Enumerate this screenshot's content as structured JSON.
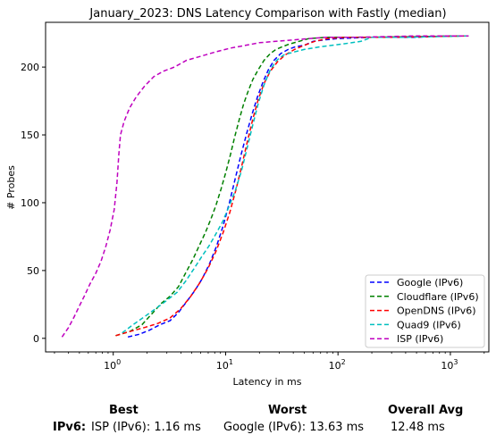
{
  "chart_data": {
    "type": "line",
    "title": "January_2023: DNS Latency Comparison with Fastly (median)",
    "xlabel": "Latency in ms",
    "ylabel": "# Probes",
    "xscale": "log",
    "xlim": [
      0.25,
      2200
    ],
    "ylim": [
      -10,
      233
    ],
    "x_ticks": [
      {
        "value": 1,
        "base": "10",
        "exp": "0"
      },
      {
        "value": 10,
        "base": "10",
        "exp": "1"
      },
      {
        "value": 100,
        "base": "10",
        "exp": "2"
      },
      {
        "value": 1000,
        "base": "10",
        "exp": "3"
      }
    ],
    "y_ticks": [
      0,
      50,
      100,
      150,
      200
    ],
    "grid": false,
    "legend_position": "lower-right",
    "series": [
      {
        "name": "Google (IPv6)",
        "color": "#0000ff",
        "x": [
          1.35,
          1.7,
          2.1,
          2.6,
          3.2,
          3.8,
          4.5,
          5.3,
          6.2,
          7.2,
          8.3,
          9.5,
          10.8,
          12.2,
          13.8,
          15.5,
          17.3,
          19.2,
          21.5,
          24,
          27,
          31,
          36,
          42,
          50,
          60,
          75,
          100,
          200,
          500,
          1000,
          1450
        ],
        "y": [
          1,
          3,
          6,
          10,
          13,
          19,
          27,
          35,
          44,
          55,
          68,
          83,
          100,
          118,
          136,
          152,
          166,
          178,
          189,
          198,
          205,
          210,
          213,
          215,
          216,
          219,
          220,
          221,
          222,
          222,
          223,
          223
        ]
      },
      {
        "name": "Cloudflare (IPv6)",
        "color": "#008000",
        "x": [
          1.05,
          1.4,
          1.8,
          2.2,
          2.7,
          3.2,
          3.8,
          4.4,
          5.1,
          5.8,
          6.6,
          7.4,
          8.2,
          9.1,
          10,
          11,
          12,
          13.2,
          14.5,
          16,
          17.5,
          19.5,
          22,
          25,
          28,
          32,
          37,
          45,
          55,
          80,
          200,
          1450
        ],
        "y": [
          2,
          5,
          10,
          18,
          26,
          31,
          38,
          48,
          58,
          68,
          78,
          88,
          98,
          110,
          122,
          135,
          148,
          161,
          173,
          183,
          191,
          198,
          205,
          210,
          213,
          215,
          217,
          219,
          221,
          222,
          222,
          223
        ]
      },
      {
        "name": "OpenDNS (IPv6)",
        "color": "#ff0000",
        "x": [
          1.05,
          1.4,
          1.9,
          2.5,
          3.2,
          4,
          4.9,
          5.9,
          7,
          8.2,
          9.5,
          10.9,
          12.4,
          14,
          15.7,
          17.5,
          19.5,
          22,
          25,
          29,
          34,
          41,
          50,
          62,
          80,
          120,
          300,
          1450
        ],
        "y": [
          2,
          5,
          8,
          11,
          15,
          22,
          31,
          41,
          52,
          64,
          78,
          93,
          110,
          128,
          146,
          162,
          176,
          188,
          197,
          204,
          209,
          213,
          216,
          219,
          221,
          222,
          222,
          223
        ]
      },
      {
        "name": "Quad9 (IPv6)",
        "color": "#00bfbf",
        "x": [
          1.2,
          1.5,
          1.9,
          2.4,
          3,
          3.7,
          4.4,
          5.2,
          6.1,
          7.1,
          8.2,
          9.4,
          10.7,
          12.2,
          13.8,
          15.5,
          17.4,
          19.5,
          22,
          25,
          28.5,
          33,
          40,
          50,
          70,
          110,
          160,
          200,
          400,
          1450
        ],
        "y": [
          4,
          10,
          16,
          22,
          28,
          34,
          42,
          51,
          60,
          68,
          77,
          86,
          97,
          109,
          123,
          140,
          157,
          173,
          187,
          198,
          205,
          209,
          211,
          213,
          215,
          217,
          219,
          222,
          222,
          223
        ]
      },
      {
        "name": "ISP (IPv6)",
        "color": "#bf00bf",
        "x": [
          0.35,
          0.4,
          0.45,
          0.5,
          0.56,
          0.62,
          0.7,
          0.78,
          0.86,
          0.94,
          1.02,
          1.08,
          1.12,
          1.16,
          1.25,
          1.4,
          1.6,
          1.9,
          2.3,
          2.8,
          3.5,
          4.5,
          6,
          8,
          11,
          15,
          20,
          28,
          40,
          55,
          80,
          150,
          500,
          1450
        ],
        "y": [
          1,
          8,
          16,
          24,
          32,
          40,
          48,
          57,
          68,
          80,
          95,
          115,
          135,
          150,
          160,
          170,
          178,
          186,
          193,
          197,
          200,
          205,
          208,
          211,
          214,
          216,
          218,
          219,
          220,
          221,
          222,
          222,
          223,
          223
        ]
      }
    ]
  },
  "summary": {
    "headers": {
      "best": "Best",
      "worst": "Worst",
      "avg": "Overall Avg"
    },
    "row_label": "IPv6:",
    "best": "ISP (IPv6): 1.16 ms",
    "worst": "Google (IPv6): 13.63 ms",
    "avg": "12.48 ms"
  }
}
